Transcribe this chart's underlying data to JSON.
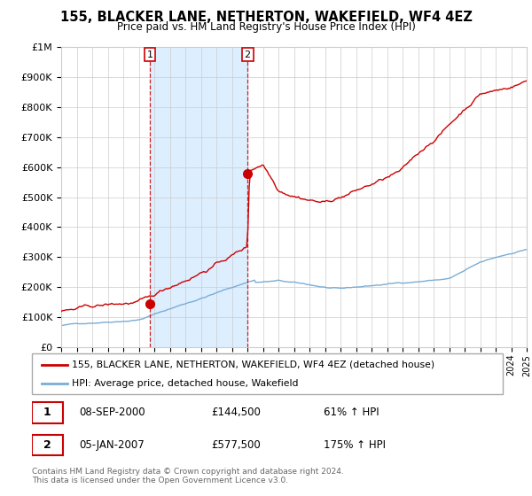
{
  "title": "155, BLACKER LANE, NETHERTON, WAKEFIELD, WF4 4EZ",
  "subtitle": "Price paid vs. HM Land Registry's House Price Index (HPI)",
  "legend_line1": "155, BLACKER LANE, NETHERTON, WAKEFIELD, WF4 4EZ (detached house)",
  "legend_line2": "HPI: Average price, detached house, Wakefield",
  "annotation1_label": "1",
  "annotation1_date": "08-SEP-2000",
  "annotation1_price": "£144,500",
  "annotation1_hpi": "61% ↑ HPI",
  "annotation2_label": "2",
  "annotation2_date": "05-JAN-2007",
  "annotation2_price": "£577,500",
  "annotation2_hpi": "175% ↑ HPI",
  "footer": "Contains HM Land Registry data © Crown copyright and database right 2024.\nThis data is licensed under the Open Government Licence v3.0.",
  "red_color": "#cc0000",
  "blue_color": "#7aadd4",
  "background_color": "#ffffff",
  "plot_bg_color": "#ffffff",
  "shade_color": "#ddeeff",
  "grid_color": "#cccccc",
  "year_start": 1995,
  "year_end": 2025,
  "ylim_max": 1000000,
  "purchase1_year": 2000.71,
  "purchase1_value": 144500,
  "purchase2_year": 2007.01,
  "purchase2_value": 577500
}
